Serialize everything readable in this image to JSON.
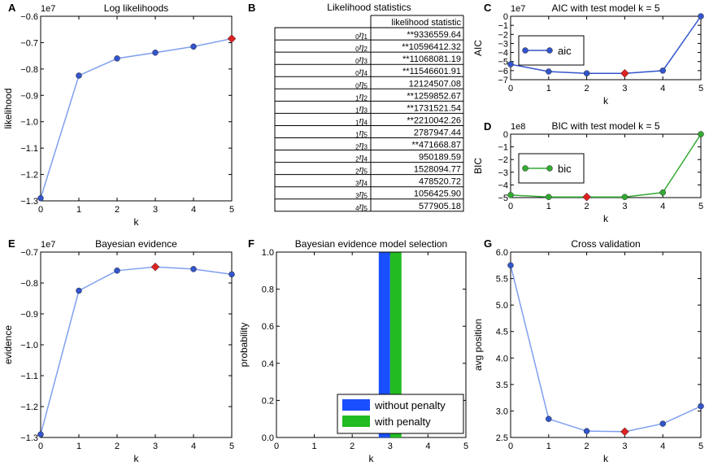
{
  "figure": {
    "panels": {
      "A": {
        "letter": "A"
      },
      "B": {
        "letter": "B"
      },
      "C": {
        "letter": "C"
      },
      "D": {
        "letter": "D"
      },
      "E": {
        "letter": "E"
      },
      "F": {
        "letter": "F"
      },
      "G": {
        "letter": "G"
      }
    }
  },
  "chart_data": [
    {
      "id": "A",
      "type": "line",
      "title": "Log likelihoods",
      "xlabel": "k",
      "ylabel": "likelihood",
      "multiplier": "1e7",
      "xlim": [
        0,
        5
      ],
      "ylim": [
        -1.3,
        -0.6
      ],
      "xticks": [
        0,
        1,
        2,
        3,
        4,
        5
      ],
      "yticks": [
        -1.3,
        -1.2,
        -1.1,
        -1.0,
        -0.9,
        -0.8,
        -0.7,
        -0.6
      ],
      "ytick_labels": [
        "−1.3",
        "−1.2",
        "−1.1",
        "−1.0",
        "−0.9",
        "−0.8",
        "−0.7",
        "−0.6"
      ],
      "x": [
        0,
        1,
        2,
        3,
        4,
        5
      ],
      "values": [
        -1.29,
        -0.825,
        -0.76,
        -0.738,
        -0.715,
        -0.685
      ],
      "highlight_index": 5,
      "line_color": "#7f9fef",
      "marker_color": "#3355cc",
      "highlight_color": "#dd2222"
    },
    {
      "id": "B",
      "type": "table",
      "title": "Likelihood statistics",
      "column_header": "likelihood statistic",
      "rows": [
        {
          "pre": "0",
          "sub": "1",
          "value": "**9336559.64"
        },
        {
          "pre": "0",
          "sub": "2",
          "value": "**10596412.32"
        },
        {
          "pre": "0",
          "sub": "3",
          "value": "**11068081.19"
        },
        {
          "pre": "0",
          "sub": "4",
          "value": "**11546601.91"
        },
        {
          "pre": "0",
          "sub": "5",
          "value": "12124507.08"
        },
        {
          "pre": "1",
          "sub": "2",
          "value": "**1259852.67"
        },
        {
          "pre": "1",
          "sub": "3",
          "value": "**1731521.54"
        },
        {
          "pre": "1",
          "sub": "4",
          "value": "**2210042.26"
        },
        {
          "pre": "1",
          "sub": "5",
          "value": "2787947.44"
        },
        {
          "pre": "2",
          "sub": "3",
          "value": "**471668.87"
        },
        {
          "pre": "2",
          "sub": "4",
          "value": "950189.59"
        },
        {
          "pre": "2",
          "sub": "5",
          "value": "1528094.77"
        },
        {
          "pre": "3",
          "sub": "4",
          "value": "478520.72"
        },
        {
          "pre": "3",
          "sub": "5",
          "value": "1056425.90"
        },
        {
          "pre": "4",
          "sub": "5",
          "value": "577905.18"
        }
      ]
    },
    {
      "id": "C",
      "type": "line",
      "title": "AIC with test model k = 5",
      "xlabel": "k",
      "ylabel": "AIC",
      "multiplier": "1e7",
      "xlim": [
        0,
        5
      ],
      "ylim": [
        -7,
        0
      ],
      "xticks": [
        0,
        1,
        2,
        3,
        4,
        5
      ],
      "yticks": [
        -7,
        -6,
        -5,
        -4,
        -3,
        -2,
        -1,
        0
      ],
      "ytick_labels": [
        "−7",
        "−6",
        "−5",
        "−4",
        "−3",
        "−2",
        "−1",
        "0"
      ],
      "x": [
        0,
        1,
        2,
        3,
        4,
        5
      ],
      "values": [
        -5.3,
        -6.1,
        -6.3,
        -6.3,
        -6.0,
        0.0
      ],
      "highlight_index": 3,
      "legend": "aic",
      "line_color": "#3355cc",
      "marker_color": "#3355cc",
      "highlight_color": "#dd2222"
    },
    {
      "id": "D",
      "type": "line",
      "title": "BIC with test model k = 5",
      "xlabel": "k",
      "ylabel": "BIC",
      "multiplier": "1e8",
      "xlim": [
        0,
        5
      ],
      "ylim": [
        -5,
        0
      ],
      "xticks": [
        0,
        1,
        2,
        3,
        4,
        5
      ],
      "yticks": [
        -5,
        -4,
        -3,
        -2,
        -1,
        0
      ],
      "ytick_labels": [
        "−5",
        "−4",
        "−3",
        "−2",
        "−1",
        "0"
      ],
      "x": [
        0,
        1,
        2,
        3,
        4,
        5
      ],
      "values": [
        -4.8,
        -4.95,
        -4.95,
        -4.95,
        -4.6,
        0.0
      ],
      "highlight_index": 2,
      "legend": "bic",
      "line_color": "#33aa33",
      "marker_color": "#33aa33",
      "highlight_color": "#dd2222"
    },
    {
      "id": "E",
      "type": "line",
      "title": "Bayesian evidence",
      "xlabel": "k",
      "ylabel": "evidence",
      "multiplier": "1e7",
      "xlim": [
        0,
        5
      ],
      "ylim": [
        -1.3,
        -0.7
      ],
      "xticks": [
        0,
        1,
        2,
        3,
        4,
        5
      ],
      "yticks": [
        -1.3,
        -1.2,
        -1.1,
        -1.0,
        -0.9,
        -0.8,
        -0.7
      ],
      "ytick_labels": [
        "−1.3",
        "−1.2",
        "−1.1",
        "−1.0",
        "−0.9",
        "−0.8",
        "−0.7"
      ],
      "x": [
        0,
        1,
        2,
        3,
        4,
        5
      ],
      "values": [
        -1.29,
        -0.825,
        -0.76,
        -0.748,
        -0.755,
        -0.772
      ],
      "highlight_index": 3,
      "line_color": "#7f9fef",
      "marker_color": "#3355cc",
      "highlight_color": "#dd2222"
    },
    {
      "id": "F",
      "type": "bar",
      "title": "Bayesian evidence model selection",
      "xlabel": "k",
      "ylabel": "probability",
      "xlim": [
        0,
        5
      ],
      "ylim": [
        0,
        1.0
      ],
      "xticks": [
        0,
        1,
        2,
        3,
        4,
        5
      ],
      "yticks": [
        0,
        0.2,
        0.4,
        0.6,
        0.8,
        1.0
      ],
      "ytick_labels": [
        "0.0",
        "0.2",
        "0.4",
        "0.6",
        "0.8",
        "1.0"
      ],
      "series": [
        {
          "name": "without penalty",
          "x": 2.85,
          "width": 0.3,
          "value": 1.0,
          "color": "#1a4fff"
        },
        {
          "name": "with penalty",
          "x": 3.15,
          "width": 0.3,
          "value": 1.0,
          "color": "#22bb22"
        }
      ]
    },
    {
      "id": "G",
      "type": "line",
      "title": "Cross validation",
      "xlabel": "k",
      "ylabel": "avg position",
      "xlim": [
        0,
        5
      ],
      "ylim": [
        2.5,
        6.0
      ],
      "xticks": [
        0,
        1,
        2,
        3,
        4,
        5
      ],
      "yticks": [
        2.5,
        3.0,
        3.5,
        4.0,
        4.5,
        5.0,
        5.5,
        6.0
      ],
      "ytick_labels": [
        "2.5",
        "3.0",
        "3.5",
        "4.0",
        "4.5",
        "5.0",
        "5.5",
        "6.0"
      ],
      "x": [
        0,
        1,
        2,
        3,
        4,
        5
      ],
      "values": [
        5.75,
        2.85,
        2.62,
        2.61,
        2.76,
        3.09
      ],
      "highlight_index": 3,
      "line_color": "#7f9fef",
      "marker_color": "#3355cc",
      "highlight_color": "#dd2222"
    }
  ]
}
